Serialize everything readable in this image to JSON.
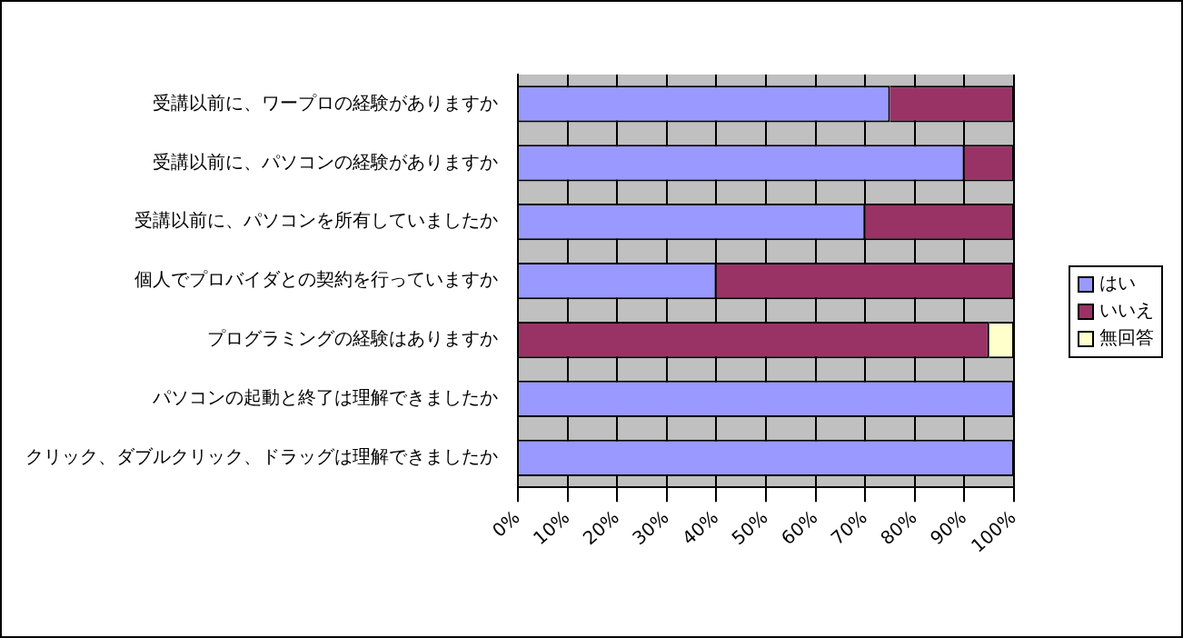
{
  "chart_data": {
    "type": "bar",
    "orientation": "horizontal",
    "stacked": true,
    "categories": [
      "受講以前に、ワープロの経験がありますか",
      "受講以前に、パソコンの経験がありますか",
      "受講以前に、パソコンを所有していましたか",
      "個人でプロバイダとの契約を行っていますか",
      "プログラミングの経験はありますか",
      "パソコンの起動と終了は理解できましたか",
      "クリック、ダブルクリック、ドラッグは理解できましたか"
    ],
    "series": [
      {
        "name": "はい",
        "color": "#9999ff",
        "values": [
          75,
          90,
          70,
          40,
          0,
          100,
          100
        ]
      },
      {
        "name": "いいえ",
        "color": "#993366",
        "values": [
          25,
          10,
          30,
          60,
          95,
          0,
          0
        ]
      },
      {
        "name": "無回答",
        "color": "#ffffcc",
        "values": [
          0,
          0,
          0,
          0,
          5,
          0,
          0
        ]
      }
    ],
    "xlim": [
      0,
      100
    ],
    "xticks": [
      {
        "value": 0,
        "label": "0%"
      },
      {
        "value": 10,
        "label": "10%"
      },
      {
        "value": 20,
        "label": "20%"
      },
      {
        "value": 30,
        "label": "30%"
      },
      {
        "value": 40,
        "label": "40%"
      },
      {
        "value": 50,
        "label": "50%"
      },
      {
        "value": 60,
        "label": "60%"
      },
      {
        "value": 70,
        "label": "70%"
      },
      {
        "value": 80,
        "label": "80%"
      },
      {
        "value": 90,
        "label": "90%"
      },
      {
        "value": 100,
        "label": "100%"
      }
    ],
    "grid": "x",
    "legend": "right"
  }
}
